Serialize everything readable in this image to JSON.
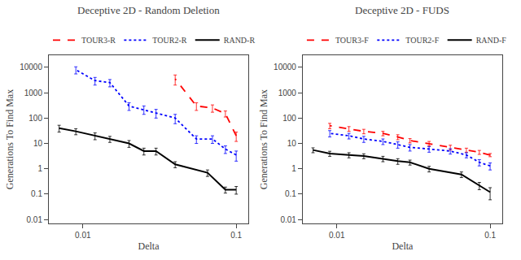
{
  "chart_data": [
    {
      "type": "line",
      "title": "Deceptive 2D - Random Deletion",
      "x_label": "Delta",
      "y_label": "Generations To Find Max",
      "log": true,
      "grid": false,
      "legend": "top",
      "xlim": [
        0.006,
        0.12
      ],
      "ylim": [
        0.007,
        30000
      ],
      "xticks": [
        0.1,
        0.01
      ],
      "yticks": [
        0.01,
        0.1,
        1,
        10,
        100,
        1000,
        10000
      ],
      "series": [
        {
          "name": "TOUR3-R",
          "color": "red",
          "line_style": "dashed",
          "x": [
            0.1,
            0.085,
            0.07,
            0.055,
            0.04
          ],
          "values": [
            20,
            150,
            250,
            300,
            3500
          ],
          "errors": [
            8,
            40,
            80,
            100,
            1500
          ]
        },
        {
          "name": "TOUR2-R",
          "color": "blue",
          "line_style": "dotted",
          "x": [
            0.1,
            0.085,
            0.07,
            0.055,
            0.04,
            0.03,
            0.025,
            0.02,
            0.015,
            0.012,
            0.009
          ],
          "values": [
            3.5,
            6,
            15,
            15,
            100,
            160,
            220,
            300,
            2500,
            3000,
            8000
          ],
          "errors": [
            1.5,
            2,
            5,
            5,
            40,
            60,
            80,
            100,
            800,
            1000,
            2500
          ]
        },
        {
          "name": "RAND-R",
          "color": "black",
          "line_style": "solid",
          "x": [
            0.1,
            0.085,
            0.065,
            0.04,
            0.03,
            0.025,
            0.02,
            0.015,
            0.012,
            0.009,
            0.007
          ],
          "values": [
            0.15,
            0.15,
            0.7,
            1.5,
            5,
            5,
            10,
            15,
            20,
            30,
            40
          ],
          "errors": [
            0.05,
            0.04,
            0.2,
            0.4,
            1.5,
            1.5,
            3,
            4,
            6,
            8,
            12
          ]
        }
      ]
    },
    {
      "type": "line",
      "title": "Deceptive 2D - FUDS",
      "x_label": "Delta",
      "y_label": "Generations To Find Max",
      "log": true,
      "grid": false,
      "legend": "top",
      "xlim": [
        0.006,
        0.12
      ],
      "ylim": [
        0.007,
        30000
      ],
      "xticks": [
        0.1,
        0.01
      ],
      "yticks": [
        0.01,
        0.1,
        1,
        10,
        100,
        1000,
        10000
      ],
      "series": [
        {
          "name": "TOUR3-F",
          "color": "red",
          "line_style": "dashed",
          "x": [
            0.1,
            0.085,
            0.07,
            0.055,
            0.04,
            0.03,
            0.025,
            0.02,
            0.015,
            0.012,
            0.009
          ],
          "values": [
            3.5,
            4.5,
            5.5,
            7,
            10,
            13,
            18,
            25,
            30,
            38,
            50
          ],
          "errors": [
            0.5,
            0.8,
            1,
            1.5,
            2,
            2.5,
            4,
            5,
            6,
            8,
            12
          ]
        },
        {
          "name": "TOUR2-F",
          "color": "blue",
          "line_style": "dotted",
          "x": [
            0.1,
            0.085,
            0.07,
            0.055,
            0.04,
            0.03,
            0.025,
            0.02,
            0.015,
            0.012,
            0.009
          ],
          "values": [
            1.3,
            1.8,
            3.5,
            5,
            6,
            7,
            9,
            12,
            15,
            20,
            25
          ],
          "errors": [
            0.4,
            0.5,
            0.8,
            1.2,
            1.5,
            2,
            2.5,
            3,
            4,
            5,
            7
          ]
        },
        {
          "name": "RAND-F",
          "color": "black",
          "line_style": "solid",
          "x": [
            0.1,
            0.085,
            0.065,
            0.04,
            0.03,
            0.025,
            0.02,
            0.015,
            0.012,
            0.009,
            0.007
          ],
          "values": [
            0.12,
            0.22,
            0.6,
            1.0,
            1.8,
            2.0,
            2.5,
            3.2,
            3.5,
            4.0,
            5.5
          ],
          "errors": [
            0.06,
            0.07,
            0.15,
            0.25,
            0.4,
            0.5,
            0.6,
            0.7,
            0.8,
            0.9,
            1.2
          ]
        }
      ]
    }
  ]
}
